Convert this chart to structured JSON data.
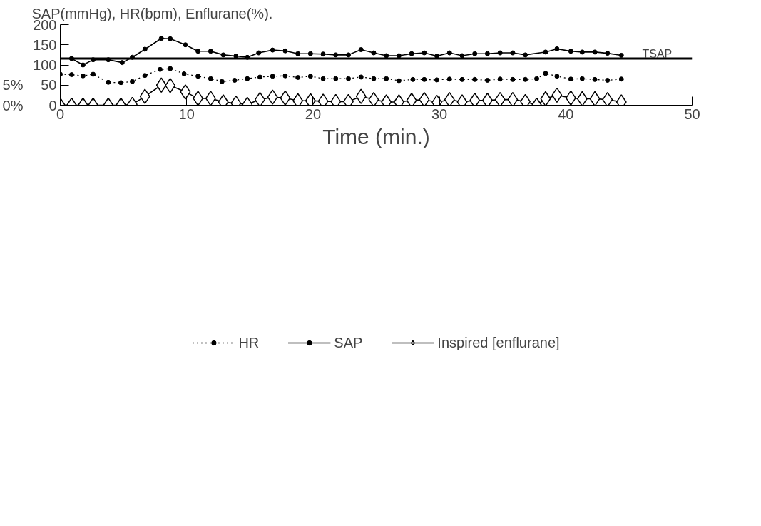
{
  "chart_data": {
    "type": "line",
    "ylabel": "SAP(mmHg), HR(bpm), Enflurane(%).",
    "xlabel": "Time (min.)",
    "xlim": [
      0,
      50
    ],
    "xticks": [
      0,
      10,
      20,
      30,
      40,
      50
    ],
    "ylim": [
      0,
      200
    ],
    "yticks": [
      0,
      50,
      100,
      150,
      200
    ],
    "y2lim": [
      0,
      20
    ],
    "y2ticks": [
      {
        "value": 0,
        "label": "0%"
      },
      {
        "value": 5,
        "label": "5%"
      }
    ],
    "grid": false,
    "legend": "bottom",
    "ref_lines": [
      {
        "axis": "y",
        "value": 116,
        "label": "TSAP",
        "color": "#000000",
        "line_style": "solid"
      }
    ],
    "series": [
      {
        "name": "HR",
        "color": "#000000",
        "marker": "circle",
        "line_style": "dotted",
        "x": [
          0,
          0.9,
          1.8,
          2.6,
          3.8,
          4.8,
          5.7,
          6.7,
          7.9,
          8.7,
          9.8,
          10.9,
          11.9,
          12.8,
          13.8,
          14.8,
          15.8,
          16.8,
          17.8,
          18.8,
          19.8,
          20.8,
          21.8,
          22.8,
          23.8,
          24.8,
          25.8,
          26.8,
          27.9,
          28.8,
          29.8,
          30.8,
          31.8,
          32.8,
          33.8,
          34.8,
          35.8,
          36.8,
          37.7,
          38.4,
          39.3,
          40.4,
          41.3,
          42.3,
          43.3,
          44.4
        ],
        "values": [
          77,
          76,
          73,
          77,
          57,
          56,
          59,
          74,
          89,
          91,
          78,
          72,
          66,
          59,
          62,
          66,
          70,
          72,
          73,
          69,
          72,
          66,
          66,
          66,
          70,
          66,
          66,
          61,
          64,
          64,
          63,
          65,
          64,
          64,
          62,
          65,
          64,
          64,
          66,
          79,
          72,
          65,
          66,
          64,
          62,
          65
        ]
      },
      {
        "name": "SAP",
        "color": "#000000",
        "marker": "circle",
        "line_style": "solid",
        "x": [
          0.9,
          1.8,
          2.6,
          3.8,
          4.9,
          5.7,
          6.7,
          8.0,
          8.7,
          9.9,
          10.9,
          11.9,
          12.9,
          13.9,
          14.8,
          15.7,
          16.8,
          17.8,
          18.8,
          19.8,
          20.8,
          21.8,
          22.8,
          23.8,
          24.8,
          25.8,
          26.8,
          27.8,
          28.8,
          29.8,
          30.8,
          31.8,
          32.8,
          33.8,
          34.8,
          35.8,
          36.8,
          38.4,
          39.3,
          40.4,
          41.3,
          42.3,
          43.3,
          44.4
        ],
        "values": [
          116,
          100,
          113,
          113,
          106,
          119,
          139,
          166,
          165,
          150,
          134,
          134,
          125,
          122,
          119,
          130,
          137,
          135,
          128,
          128,
          127,
          125,
          125,
          138,
          130,
          123,
          123,
          128,
          130,
          122,
          130,
          123,
          128,
          128,
          130,
          130,
          125,
          132,
          140,
          134,
          132,
          132,
          129,
          124
        ]
      },
      {
        "name": "Inspired [enflurane]",
        "color": "#000000",
        "marker": "diamond",
        "line_style": "solid",
        "axis": "y2",
        "x": [
          0,
          0.9,
          1.8,
          2.6,
          3.8,
          4.8,
          5.7,
          6.7,
          8.0,
          8.7,
          9.9,
          10.9,
          11.9,
          12.9,
          13.9,
          14.8,
          15.8,
          16.8,
          17.8,
          18.8,
          19.8,
          20.8,
          21.8,
          22.8,
          23.8,
          24.8,
          25.8,
          26.8,
          27.8,
          28.8,
          29.8,
          30.8,
          31.8,
          32.8,
          33.8,
          34.8,
          35.8,
          36.8,
          37.7,
          38.4,
          39.3,
          40.4,
          41.3,
          42.3,
          43.3,
          44.4
        ],
        "values": [
          0,
          0,
          0,
          0,
          0,
          0,
          0.2,
          2.2,
          5.0,
          4.9,
          3.3,
          1.7,
          1.7,
          0.8,
          0.5,
          0.2,
          1.4,
          2.0,
          1.8,
          1.1,
          1.1,
          1.0,
          0.9,
          0.9,
          2.2,
          1.4,
          0.8,
          0.8,
          1.2,
          1.4,
          0.7,
          1.4,
          0.8,
          1.2,
          1.2,
          1.4,
          1.4,
          0.9,
          0,
          1.6,
          2.5,
          1.8,
          1.6,
          1.6,
          1.4,
          0.8
        ]
      }
    ]
  }
}
